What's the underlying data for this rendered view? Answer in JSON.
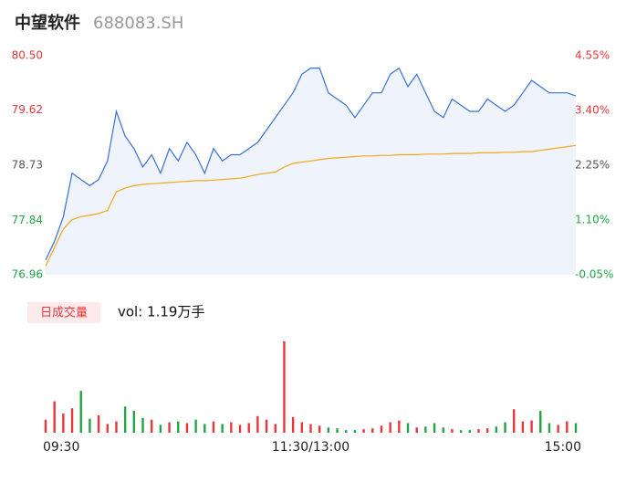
{
  "chart_data": {
    "type": "intraday",
    "title": "中望软件",
    "subtitle": "688083.SH",
    "volume_label": "日成交量",
    "volume_text": "vol: 1.19万手",
    "xlim": [
      0,
      240
    ],
    "xticks": [
      {
        "value": 0,
        "label": "09:30"
      },
      {
        "value": 120,
        "label": "11:30/13:00"
      },
      {
        "value": 240,
        "label": "15:00"
      }
    ],
    "ylim": [
      76.96,
      80.5
    ],
    "yticks": [
      {
        "value": 76.96,
        "label": "76.96"
      },
      {
        "value": 77.84,
        "label": "77.84"
      },
      {
        "value": 78.73,
        "label": "78.73"
      },
      {
        "value": 79.62,
        "label": "79.62"
      },
      {
        "value": 80.5,
        "label": "80.50"
      }
    ],
    "y2lim": [
      -0.05,
      4.55
    ],
    "y2ticks": [
      {
        "value": -0.05,
        "label": "-0.05%"
      },
      {
        "value": 1.1,
        "label": "1.10%"
      },
      {
        "value": 2.25,
        "label": "2.25%"
      },
      {
        "value": 3.4,
        "label": "3.40%"
      },
      {
        "value": 4.55,
        "label": "4.55%"
      }
    ],
    "x": [
      0,
      4,
      8,
      12,
      16,
      20,
      24,
      28,
      32,
      36,
      40,
      44,
      48,
      52,
      56,
      60,
      64,
      68,
      72,
      76,
      80,
      84,
      88,
      92,
      96,
      100,
      104,
      108,
      112,
      116,
      120,
      124,
      128,
      132,
      136,
      140,
      144,
      148,
      152,
      156,
      160,
      164,
      168,
      172,
      176,
      180,
      184,
      188,
      192,
      196,
      200,
      204,
      208,
      212,
      216,
      220,
      224,
      228,
      232,
      236,
      240
    ],
    "series": [
      {
        "name": "price",
        "color": "#3b6fd6",
        "values": [
          77.2,
          77.5,
          77.9,
          78.6,
          78.5,
          78.4,
          78.5,
          78.8,
          79.6,
          79.2,
          79.0,
          78.7,
          78.9,
          78.6,
          79.0,
          78.8,
          79.1,
          78.9,
          78.6,
          79.0,
          78.8,
          78.9,
          78.9,
          79.0,
          79.1,
          79.3,
          79.5,
          79.7,
          79.9,
          80.2,
          80.3,
          80.3,
          79.9,
          79.8,
          79.7,
          79.5,
          79.7,
          79.9,
          79.9,
          80.2,
          80.3,
          80.0,
          80.2,
          79.9,
          79.6,
          79.5,
          79.8,
          79.7,
          79.6,
          79.6,
          79.8,
          79.7,
          79.6,
          79.7,
          79.9,
          80.1,
          80.0,
          79.9,
          79.9,
          79.9,
          79.85
        ]
      },
      {
        "name": "average",
        "color": "#f0a818",
        "values": [
          77.1,
          77.4,
          77.7,
          77.85,
          77.9,
          77.92,
          77.95,
          78.0,
          78.3,
          78.36,
          78.4,
          78.42,
          78.43,
          78.44,
          78.45,
          78.46,
          78.47,
          78.48,
          78.48,
          78.49,
          78.5,
          78.51,
          78.52,
          78.55,
          78.58,
          78.6,
          78.62,
          78.7,
          78.76,
          78.78,
          78.8,
          78.82,
          78.84,
          78.85,
          78.86,
          78.87,
          78.88,
          78.88,
          78.89,
          78.89,
          78.9,
          78.9,
          78.9,
          78.91,
          78.91,
          78.91,
          78.92,
          78.92,
          78.92,
          78.93,
          78.93,
          78.93,
          78.94,
          78.94,
          78.95,
          78.95,
          78.97,
          78.99,
          79.01,
          79.03,
          79.05
        ]
      }
    ],
    "volume": {
      "ylim": [
        0,
        11
      ],
      "up_color": "#e8363b",
      "down_color": "#21a346",
      "values": [
        1.5,
        3.6,
        2.2,
        2.8,
        4.8,
        1.6,
        2.0,
        1.0,
        1.3,
        3.0,
        2.5,
        1.7,
        1.5,
        0.9,
        1.2,
        1.3,
        1.1,
        1.5,
        1.0,
        1.3,
        1.0,
        1.2,
        0.9,
        1.1,
        1.9,
        1.5,
        1.0,
        10.5,
        1.8,
        1.2,
        1.0,
        0.8,
        0.6,
        0.5,
        0.3,
        0.3,
        0.4,
        0.5,
        0.8,
        1.2,
        1.4,
        1.1,
        0.6,
        0.7,
        1.1,
        0.6,
        0.4,
        0.3,
        0.3,
        0.4,
        0.5,
        0.7,
        1.2,
        2.7,
        1.3,
        1.4,
        2.5,
        1.1,
        0.9,
        1.3,
        1.1
      ]
    }
  }
}
